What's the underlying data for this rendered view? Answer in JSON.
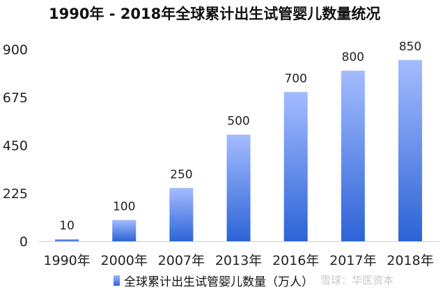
{
  "chart_data": {
    "type": "bar",
    "title": "1990年 - 2018年全球累计出生试管婴儿数量统况",
    "categories": [
      "1990年",
      "2000年",
      "2007年",
      "2013年",
      "2016年",
      "2017年",
      "2018年"
    ],
    "series": [
      {
        "name": "全球累计出生试管婴儿数量（万人）",
        "values": [
          10,
          100,
          250,
          500,
          700,
          800,
          850
        ]
      }
    ],
    "data_labels": [
      "10",
      "100",
      "250",
      "500",
      "700",
      "800",
      "850"
    ],
    "ylim": [
      0,
      900
    ],
    "yticks": [
      0,
      225,
      450,
      675,
      900
    ],
    "ytick_labels": [
      "0",
      "225",
      "450",
      "675",
      "900"
    ],
    "grid": false,
    "legend_position": "bottom",
    "bar_color_top": "#a4bcff",
    "bar_color_bottom": "#2c63d6"
  },
  "watermark": "雪球：华医资本"
}
